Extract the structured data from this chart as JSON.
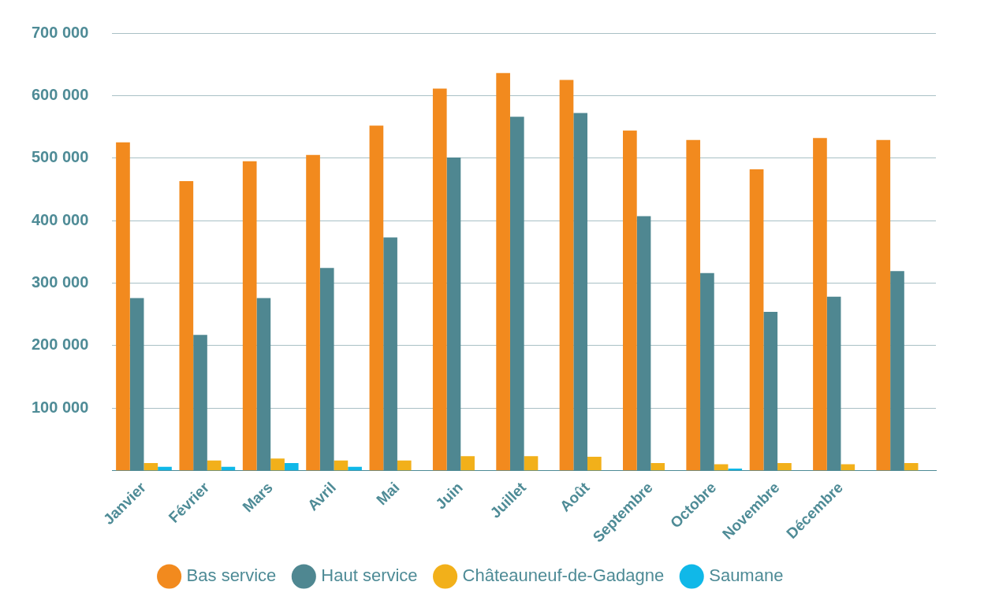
{
  "chart_data": {
    "type": "bar",
    "categories": [
      "Janvier",
      "Février",
      "Mars",
      "Avril",
      "Mai",
      "Juin",
      "Juillet",
      "Août",
      "Septembre",
      "Octobre",
      "Novembre",
      "Décembre",
      null
    ],
    "series": [
      {
        "name": "Bas service",
        "color": "#f28a1e",
        "values": [
          525000,
          463000,
          495000,
          505000,
          552000,
          611000,
          636000,
          625000,
          544000,
          529000,
          482000,
          532000,
          529000
        ]
      },
      {
        "name": "Haut service",
        "color": "#4f8791",
        "values": [
          276000,
          217000,
          276000,
          324000,
          373000,
          501000,
          566000,
          572000,
          407000,
          316000,
          254000,
          278000,
          319000
        ]
      },
      {
        "name": "Châteauneuf-de-Gadagne",
        "color": "#f2b01a",
        "values": [
          12000,
          16000,
          19000,
          16000,
          16000,
          23000,
          23000,
          22000,
          12000,
          10000,
          12000,
          10000,
          12000
        ]
      },
      {
        "name": "Saumane",
        "color": "#10b8e8",
        "values": [
          6000,
          6000,
          12000,
          6000,
          0,
          0,
          0,
          0,
          0,
          3000,
          0,
          0,
          0
        ]
      }
    ],
    "ylim": [
      0,
      700000
    ],
    "yticks": [
      {
        "value": 100000,
        "label": "100 000"
      },
      {
        "value": 200000,
        "label": "200 000"
      },
      {
        "value": 300000,
        "label": "300 000"
      },
      {
        "value": 400000,
        "label": "400 000"
      },
      {
        "value": 500000,
        "label": "500 000"
      },
      {
        "value": 600000,
        "label": "600 000"
      },
      {
        "value": 700000,
        "label": "700 000"
      }
    ],
    "grid": "y",
    "legend": "bottom"
  }
}
